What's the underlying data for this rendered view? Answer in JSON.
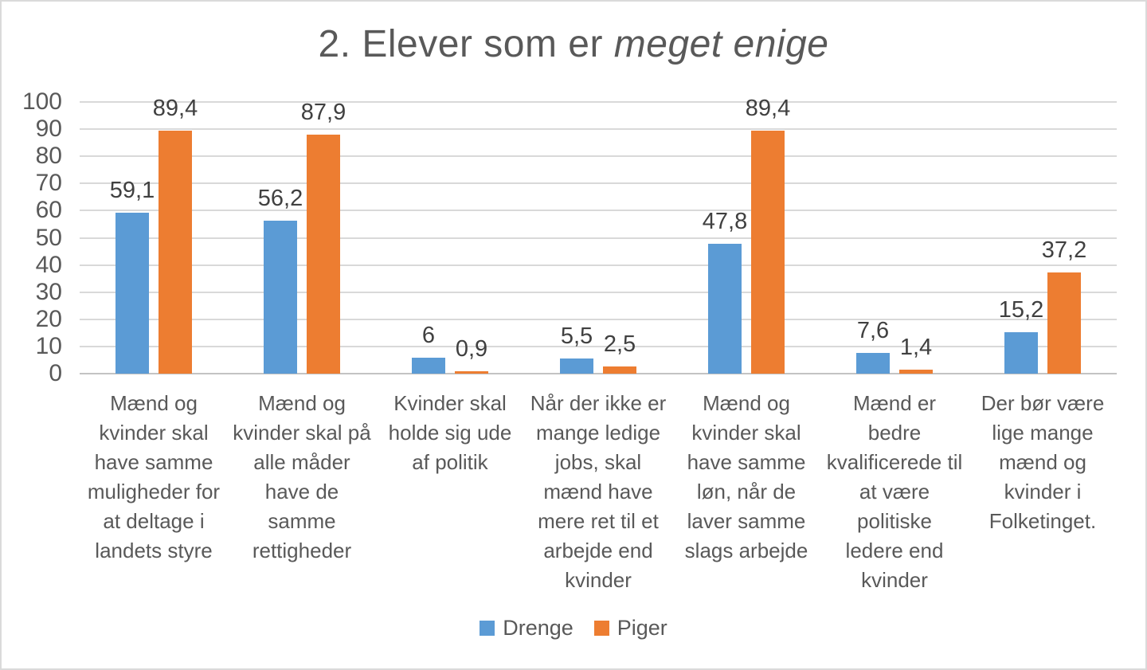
{
  "chart_data": {
    "type": "bar",
    "title": "2. Elever som er meget enige",
    "title_prefix": "2. Elever som er ",
    "title_italic": "meget enige",
    "xlabel": "",
    "ylabel": "",
    "ylim": [
      0,
      100
    ],
    "yticks": [
      0,
      10,
      20,
      30,
      40,
      50,
      60,
      70,
      80,
      90,
      100
    ],
    "grid": true,
    "legend_position": "bottom",
    "categories": [
      "Mænd og kvinder skal have samme muligheder for at deltage i landets styre",
      "Mænd og kvinder skal på alle måder have de samme rettigheder",
      "Kvinder skal holde sig ude af politik",
      "Når der ikke er mange ledige jobs, skal mænd have mere ret til et arbejde end kvinder",
      "Mænd og kvinder skal have samme løn, når de laver samme slags arbejde",
      "Mænd er bedre kvalificerede til at være politiske ledere end kvinder",
      "Der bør være lige mange mænd og kvinder i Folketinget."
    ],
    "category_wraps": [
      [
        "Mænd og",
        "kvinder skal",
        "have samme",
        "muligheder for",
        "at deltage i",
        "landets styre"
      ],
      [
        "Mænd og",
        "kvinder skal på",
        "alle måder",
        "have de",
        "samme",
        "rettigheder"
      ],
      [
        "Kvinder skal",
        "holde sig ude",
        "af politik"
      ],
      [
        "Når der ikke er",
        "mange ledige",
        "jobs, skal",
        "mænd have",
        "mere ret til et",
        "arbejde end",
        "kvinder"
      ],
      [
        "Mænd og",
        "kvinder skal",
        "have samme",
        "løn, når de",
        "laver samme",
        "slags arbejde"
      ],
      [
        "Mænd er",
        "bedre",
        "kvalificerede til",
        "at være",
        "politiske",
        "ledere end",
        "kvinder"
      ],
      [
        "Der bør være",
        "lige mange",
        "mænd og",
        "kvinder i",
        "Folketinget."
      ]
    ],
    "series": [
      {
        "name": "Drenge",
        "color": "#5b9bd5",
        "values": [
          59.1,
          56.2,
          6,
          5.5,
          47.8,
          7.6,
          15.2
        ],
        "labels": [
          "59,1",
          "56,2",
          "6",
          "5,5",
          "47,8",
          "7,6",
          "15,2"
        ]
      },
      {
        "name": "Piger",
        "color": "#ed7d31",
        "values": [
          89.4,
          87.9,
          0.9,
          2.5,
          89.4,
          1.4,
          37.2
        ],
        "labels": [
          "89,4",
          "87,9",
          "0,9",
          "2,5",
          "89,4",
          "1,4",
          "37,2"
        ]
      }
    ]
  },
  "colors": {
    "text": "#595959",
    "data_label": "#404040",
    "gridline": "#d9d9d9",
    "axis_line": "#c3c3c3",
    "background": "#ffffff",
    "border": "#dadada"
  }
}
